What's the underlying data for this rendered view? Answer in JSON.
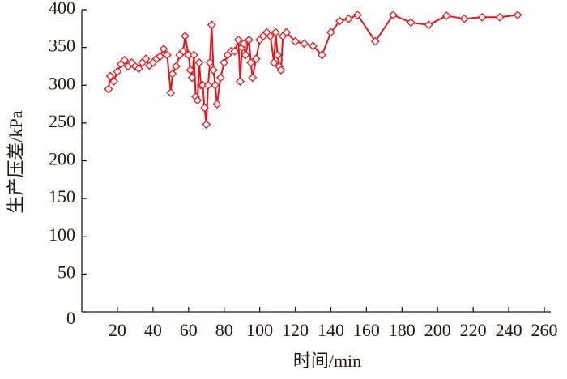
{
  "chart_data": {
    "type": "line",
    "x_label": "时间/min",
    "y_label": "生产压差/kPa",
    "xlim": [
      0,
      260
    ],
    "xticks": [
      20,
      40,
      60,
      80,
      100,
      120,
      140,
      160,
      180,
      200,
      220,
      240,
      260
    ],
    "ylim": [
      0,
      400
    ],
    "yticks": [
      0,
      50,
      100,
      150,
      200,
      250,
      300,
      350,
      400
    ],
    "color": "#e8141c",
    "marker": "diamond",
    "x": [
      15,
      16,
      18,
      20,
      22,
      24,
      26,
      28,
      30,
      32,
      34,
      36,
      38,
      40,
      42,
      44,
      46,
      48,
      50,
      51,
      53,
      55,
      57,
      58,
      60,
      61,
      62,
      63,
      64,
      65,
      66,
      67,
      68,
      69,
      70,
      71,
      72,
      73,
      74,
      75,
      76,
      78,
      80,
      82,
      84,
      86,
      88,
      89,
      90,
      91,
      92,
      94,
      95,
      96,
      98,
      100,
      102,
      104,
      106,
      108,
      109,
      110,
      111,
      112,
      113,
      115,
      120,
      125,
      130,
      135,
      140,
      145,
      150,
      155,
      165,
      175,
      185,
      195,
      205,
      215,
      225,
      235,
      245
    ],
    "values": [
      295,
      312,
      305,
      318,
      328,
      333,
      325,
      330,
      325,
      322,
      330,
      335,
      326,
      330,
      335,
      338,
      348,
      340,
      290,
      315,
      325,
      340,
      345,
      365,
      340,
      320,
      310,
      340,
      285,
      280,
      330,
      300,
      300,
      270,
      248,
      300,
      330,
      380,
      320,
      300,
      275,
      310,
      330,
      340,
      345,
      345,
      360,
      305,
      350,
      355,
      340,
      360,
      330,
      310,
      335,
      360,
      365,
      370,
      365,
      330,
      370,
      340,
      325,
      320,
      365,
      370,
      358,
      355,
      352,
      340,
      370,
      385,
      388,
      393,
      358,
      393,
      383,
      380,
      392,
      388,
      390,
      390,
      393
    ]
  }
}
